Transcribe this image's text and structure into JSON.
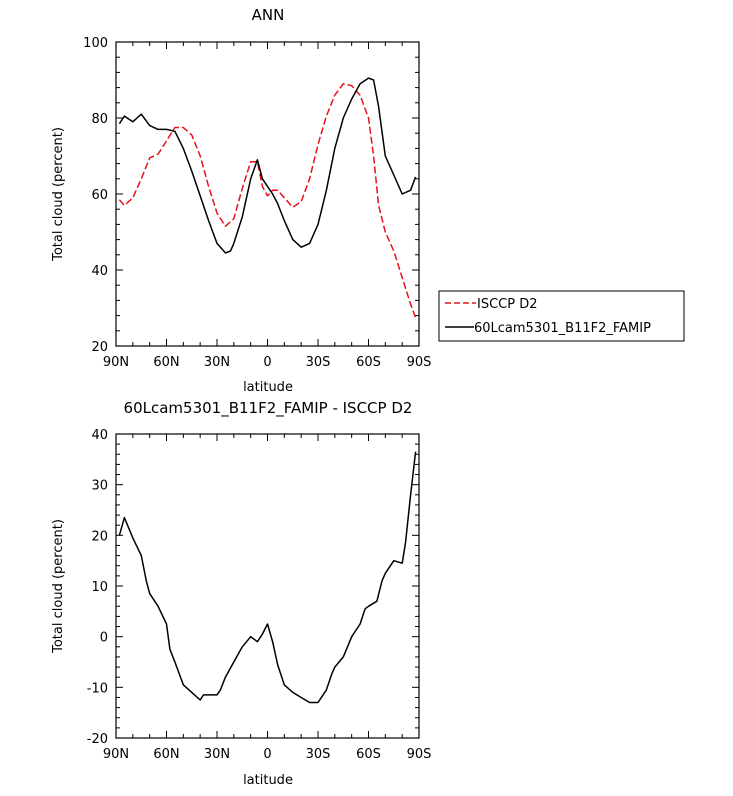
{
  "chart_data": [
    {
      "type": "line",
      "title": "ANN",
      "xlabel": "latitude",
      "ylabel": "Total cloud (percent)",
      "xlim": [
        90,
        -90
      ],
      "ylim": [
        20,
        100
      ],
      "x_tick_labels": [
        "90N",
        "60N",
        "30N",
        "0",
        "30S",
        "60S",
        "90S"
      ],
      "y_tick_labels": [
        "20",
        "40",
        "60",
        "80",
        "100"
      ],
      "legend": {
        "placement": "right"
      },
      "series": [
        {
          "name": "ISCCP D2",
          "color": "#e8101a",
          "style": "dashed",
          "x": [
            88,
            85,
            80,
            75,
            70,
            65,
            60,
            55,
            50,
            45,
            40,
            35,
            30,
            25,
            20,
            15,
            10,
            6,
            3,
            0,
            -3,
            -6,
            -10,
            -15,
            -20,
            -25,
            -30,
            -35,
            -40,
            -45,
            -50,
            -55,
            -60,
            -63,
            -66,
            -70,
            -75,
            -80,
            -85,
            -88
          ],
          "y": [
            58.5,
            57,
            59,
            64,
            69.5,
            70.5,
            74,
            77.5,
            77.5,
            75.5,
            70,
            62,
            55,
            51.5,
            53.5,
            61.5,
            68.5,
            68.5,
            62,
            59.5,
            61,
            61,
            59,
            56.5,
            58,
            64,
            73,
            80.5,
            86,
            89,
            88.5,
            86,
            80,
            70,
            57,
            50,
            45,
            38,
            31,
            27.5
          ]
        },
        {
          "name": "60Lcam5301_B11F2_FAMIP",
          "color": "#000000",
          "style": "solid",
          "x": [
            88,
            85,
            80,
            75,
            70,
            65,
            60,
            55,
            50,
            45,
            40,
            35,
            30,
            25,
            22,
            20,
            15,
            10,
            6,
            3,
            0,
            -3,
            -6,
            -10,
            -15,
            -20,
            -25,
            -30,
            -35,
            -40,
            -45,
            -50,
            -55,
            -60,
            -63,
            -66,
            -70,
            -75,
            -80,
            -85,
            -88
          ],
          "y": [
            78.5,
            80.5,
            79,
            81,
            78,
            77,
            77,
            76.5,
            72,
            66,
            59.5,
            53,
            47,
            44.5,
            45,
            47,
            54,
            64,
            69,
            64,
            62,
            60,
            57.5,
            53,
            48,
            46,
            47,
            52,
            61,
            72,
            80,
            85,
            89,
            90.5,
            90,
            83,
            70,
            65,
            60,
            61,
            64.5
          ]
        }
      ]
    },
    {
      "type": "line",
      "title": "60Lcam5301_B11F2_FAMIP - ISCCP D2",
      "xlabel": "latitude",
      "ylabel": "Total cloud (percent)",
      "xlim": [
        90,
        -90
      ],
      "ylim": [
        -20,
        40
      ],
      "x_tick_labels": [
        "90N",
        "60N",
        "30N",
        "0",
        "30S",
        "60S",
        "90S"
      ],
      "y_tick_labels": [
        "-20",
        "-10",
        "0",
        "10",
        "20",
        "30",
        "40"
      ],
      "series": [
        {
          "color": "#000000",
          "style": "solid",
          "x": [
            88,
            85,
            80,
            75,
            72,
            70,
            65,
            60,
            58,
            55,
            50,
            45,
            40,
            38,
            35,
            30,
            28,
            25,
            20,
            15,
            10,
            6,
            3,
            0,
            -3,
            -6,
            -10,
            -15,
            -20,
            -25,
            -30,
            -35,
            -38,
            -40,
            -45,
            -50,
            -55,
            -58,
            -60,
            -65,
            -68,
            -70,
            -75,
            -80,
            -82,
            -85,
            -88
          ],
          "y": [
            20,
            23.5,
            19.5,
            16,
            11,
            8.5,
            6,
            2.5,
            -2.5,
            -5,
            -9.5,
            -11,
            -12.5,
            -11.5,
            -11.5,
            -11.5,
            -10.5,
            -8,
            -5,
            -2,
            0,
            -1,
            0.5,
            2.5,
            -1,
            -5.5,
            -9.5,
            -11,
            -12,
            -13,
            -13,
            -10.5,
            -7.5,
            -6,
            -4,
            0,
            2.5,
            5.5,
            6,
            7,
            11,
            12.5,
            15,
            14.5,
            18.5,
            28,
            36.5
          ]
        }
      ]
    }
  ]
}
